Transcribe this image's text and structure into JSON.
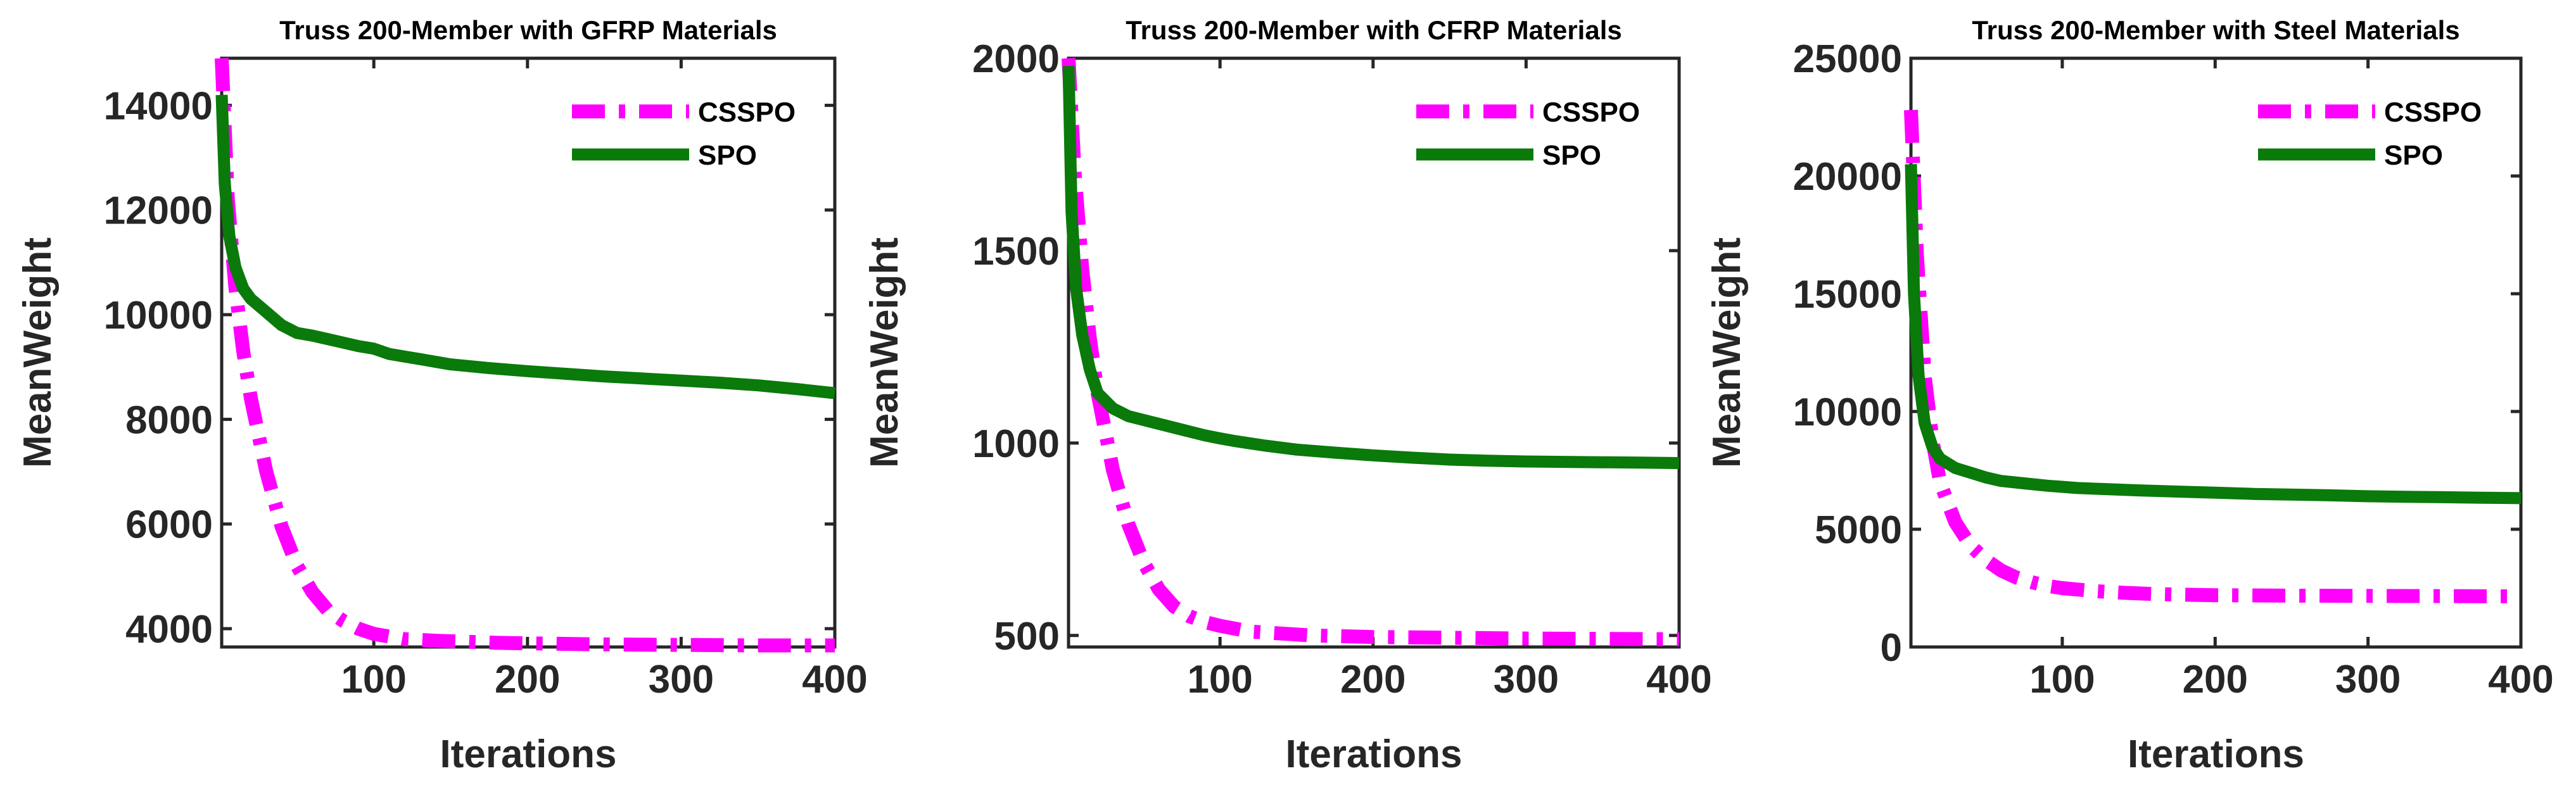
{
  "chart_data": [
    {
      "type": "line",
      "title": "Truss 200-Member with GFRP Materials",
      "xlabel": "Iterations",
      "ylabel": "MeanWeight",
      "xlim": [
        1,
        400
      ],
      "ylim": [
        3650,
        14900
      ],
      "xticks": [
        100,
        200,
        300,
        400
      ],
      "yticks": [
        4000,
        6000,
        8000,
        10000,
        12000,
        14000
      ],
      "xtick_labels": [
        "100",
        "200",
        "300",
        "400"
      ],
      "ytick_labels": [
        "4000",
        "6000",
        "8000",
        "10000",
        "12000",
        "14000"
      ],
      "legend_position": "top-right",
      "series": [
        {
          "name": "CSSPO",
          "color": "#FF00FF",
          "style": "dash-dot",
          "x": [
            1,
            5,
            10,
            15,
            20,
            30,
            40,
            50,
            60,
            70,
            80,
            90,
            100,
            120,
            140,
            160,
            180,
            200,
            250,
            300,
            350,
            400
          ],
          "y": [
            14900,
            12200,
            10500,
            9300,
            8400,
            7000,
            5950,
            5200,
            4700,
            4350,
            4150,
            4000,
            3900,
            3800,
            3770,
            3750,
            3730,
            3720,
            3700,
            3690,
            3680,
            3680
          ]
        },
        {
          "name": "SPO",
          "color": "#0A7A0A",
          "style": "solid",
          "x": [
            1,
            3,
            6,
            10,
            15,
            20,
            30,
            40,
            50,
            60,
            75,
            90,
            100,
            110,
            130,
            150,
            175,
            200,
            225,
            250,
            275,
            300,
            325,
            350,
            375,
            400
          ],
          "y": [
            14200,
            12500,
            11500,
            10900,
            10500,
            10300,
            10050,
            9800,
            9650,
            9600,
            9500,
            9400,
            9350,
            9250,
            9150,
            9050,
            8980,
            8920,
            8870,
            8820,
            8780,
            8740,
            8700,
            8650,
            8580,
            8500
          ]
        }
      ]
    },
    {
      "type": "line",
      "title": "Truss 200-Member with CFRP Materials",
      "xlabel": "Iterations",
      "ylabel": "MeanWeight",
      "xlim": [
        1,
        400
      ],
      "ylim": [
        470,
        2000
      ],
      "xticks": [
        100,
        200,
        300,
        400
      ],
      "yticks": [
        500,
        1000,
        1500,
        2000
      ],
      "xtick_labels": [
        "100",
        "200",
        "300",
        "400"
      ],
      "ytick_labels": [
        "500",
        "1000",
        "1500",
        "2000"
      ],
      "legend_position": "top-right",
      "series": [
        {
          "name": "CSSPO",
          "color": "#FF00FF",
          "style": "dash-dot",
          "x": [
            1,
            5,
            10,
            15,
            20,
            30,
            40,
            50,
            60,
            70,
            80,
            90,
            100,
            120,
            140,
            160,
            180,
            200,
            250,
            300,
            350,
            400
          ],
          "y": [
            2000,
            1700,
            1450,
            1270,
            1130,
            930,
            790,
            690,
            620,
            575,
            550,
            535,
            525,
            510,
            505,
            500,
            498,
            496,
            494,
            492,
            491,
            490
          ]
        },
        {
          "name": "SPO",
          "color": "#0A7A0A",
          "style": "solid",
          "x": [
            1,
            3,
            6,
            10,
            15,
            20,
            30,
            40,
            50,
            60,
            75,
            90,
            100,
            110,
            130,
            150,
            175,
            200,
            225,
            250,
            275,
            300,
            325,
            350,
            375,
            400
          ],
          "y": [
            1980,
            1600,
            1400,
            1280,
            1190,
            1130,
            1090,
            1070,
            1060,
            1050,
            1035,
            1020,
            1012,
            1005,
            993,
            983,
            975,
            968,
            962,
            957,
            954,
            952,
            951,
            950,
            949,
            948
          ]
        }
      ]
    },
    {
      "type": "line",
      "title": "Truss 200-Member with Steel Materials",
      "xlabel": "Iterations",
      "ylabel": "MeanWeight",
      "xlim": [
        1,
        400
      ],
      "ylim": [
        0,
        25000
      ],
      "xticks": [
        100,
        200,
        300,
        400
      ],
      "yticks": [
        0,
        5000,
        10000,
        15000,
        20000,
        25000
      ],
      "xtick_labels": [
        "100",
        "200",
        "300",
        "400"
      ],
      "ytick_labels": [
        "0",
        "5000",
        "10000",
        "15000",
        "20000",
        "25000"
      ],
      "legend_position": "top-right",
      "series": [
        {
          "name": "CSSPO",
          "color": "#FF00FF",
          "style": "dash-dot",
          "x": [
            1,
            5,
            10,
            15,
            20,
            30,
            40,
            50,
            60,
            70,
            80,
            90,
            100,
            120,
            140,
            160,
            180,
            200,
            250,
            300,
            350,
            400
          ],
          "y": [
            22800,
            16500,
            11500,
            8800,
            7000,
            5300,
            4300,
            3700,
            3250,
            2950,
            2750,
            2600,
            2500,
            2380,
            2300,
            2250,
            2220,
            2200,
            2180,
            2170,
            2160,
            2150
          ]
        },
        {
          "name": "SPO",
          "color": "#0A7A0A",
          "style": "solid",
          "x": [
            1,
            3,
            6,
            10,
            15,
            20,
            30,
            40,
            50,
            60,
            75,
            90,
            100,
            110,
            130,
            150,
            175,
            200,
            225,
            250,
            275,
            300,
            325,
            350,
            375,
            400
          ],
          "y": [
            20500,
            15000,
            11500,
            9500,
            8500,
            8000,
            7600,
            7400,
            7200,
            7050,
            6950,
            6850,
            6800,
            6750,
            6700,
            6650,
            6600,
            6550,
            6500,
            6470,
            6440,
            6400,
            6380,
            6360,
            6340,
            6320
          ]
        }
      ]
    }
  ]
}
